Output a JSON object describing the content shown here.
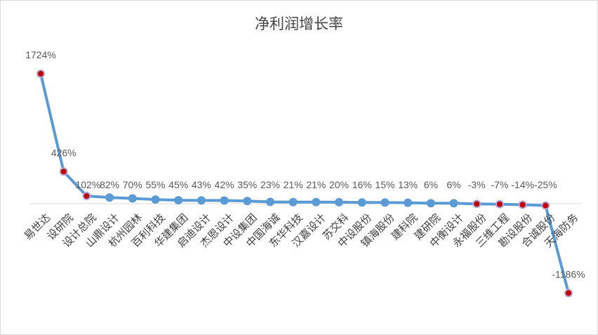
{
  "chart_data": {
    "type": "line",
    "title": "净利润增长率",
    "categories": [
      "易世达",
      "设研院",
      "设计总院",
      "山鼎设计",
      "杭州园林",
      "百利科技",
      "华建集团",
      "启迪设计",
      "杰恩设计",
      "中设集团",
      "中国海诚",
      "东华科技",
      "汉嘉设计",
      "苏交科",
      "中设股份",
      "镇海股份",
      "建科院",
      "建研院",
      "中衡设计",
      "永福股份",
      "三维工程",
      "勘设股份",
      "合诚股份",
      "天海防务"
    ],
    "values": [
      1724,
      426,
      102,
      82,
      70,
      55,
      45,
      43,
      42,
      35,
      23,
      21,
      21,
      20,
      16,
      15,
      13,
      6,
      6,
      -3,
      -7,
      -14,
      -25,
      -1186
    ],
    "data_labels": [
      "1724%",
      "426%",
      "102%",
      "82%",
      "70%",
      "55%",
      "45%",
      "43%",
      "42%",
      "35%",
      "23%",
      "21%",
      "21%",
      "20%",
      "16%",
      "15%",
      "13%",
      "6%",
      "6%",
      "-3%",
      "-7%",
      "-14%",
      "-25%",
      "-1186%"
    ],
    "highlighted": [
      "易世达",
      "设研院",
      "设计总院",
      "永福股份",
      "三维工程",
      "勘设股份",
      "合诚股份",
      "天海防务"
    ],
    "colors": {
      "line": "#5b9bd5",
      "marker": "#5b9bd5",
      "highlight_marker": "#c00000",
      "axis": "#d9d9d9"
    },
    "grid": false,
    "legend": "none"
  }
}
